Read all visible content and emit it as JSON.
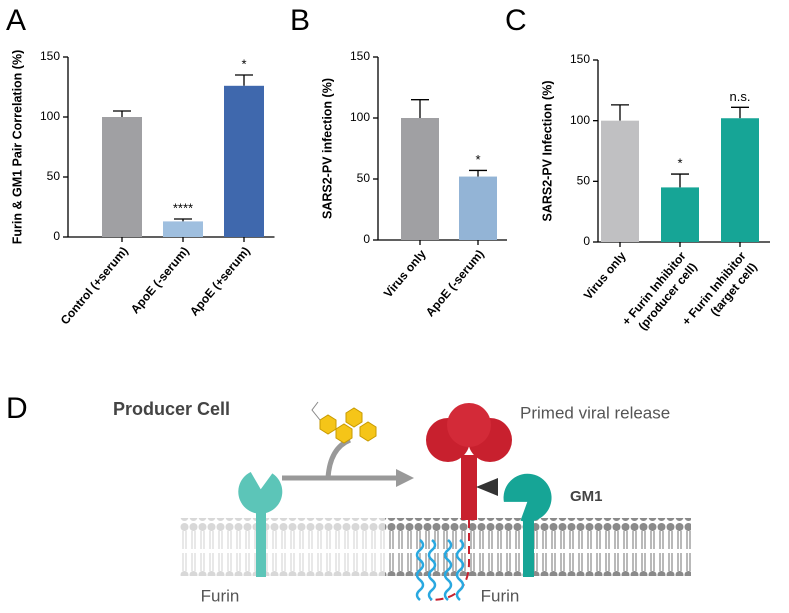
{
  "chart_data": [
    {
      "type": "bar",
      "panel": "A",
      "y_label": "Furin & GM1 Pair Correlation (%)",
      "categories": [
        [
          "Control (+serum)"
        ],
        [
          "ApoE (-serum)"
        ],
        [
          "ApoE (+serum)"
        ]
      ],
      "values": [
        100,
        13,
        126
      ],
      "errors": [
        5,
        2,
        9
      ],
      "colors": [
        "#a0a0a3",
        "#9fbfdf",
        "#3f68ad"
      ],
      "annotations": [
        null,
        "****",
        "*"
      ],
      "ylim": [
        0,
        150
      ],
      "yticks": [
        0,
        50,
        100,
        150
      ]
    },
    {
      "type": "bar",
      "panel": "B",
      "y_label": "SARS2-PV infection (%)",
      "categories": [
        [
          "Virus only"
        ],
        [
          "ApoE (-serum)"
        ]
      ],
      "values": [
        100,
        52
      ],
      "errors": [
        15,
        5
      ],
      "colors": [
        "#a0a0a3",
        "#93b4d6"
      ],
      "annotations": [
        null,
        "*"
      ],
      "ylim": [
        0,
        150
      ],
      "yticks": [
        0,
        50,
        100,
        150
      ]
    },
    {
      "type": "bar",
      "panel": "C",
      "y_label": "SARS2-PV Infection (%)",
      "categories": [
        [
          "Virus only"
        ],
        [
          "+ Furin Inhibitor",
          "(producer cell)"
        ],
        [
          "+ Furin Inhibitor",
          "(target cell)"
        ]
      ],
      "values": [
        100,
        45,
        102
      ],
      "errors": [
        13,
        11,
        9
      ],
      "colors": [
        "#c0c0c2",
        "#16a596",
        "#16a596"
      ],
      "annotations": [
        null,
        "*",
        "n.s."
      ],
      "ylim": [
        0,
        150
      ],
      "yticks": [
        0,
        50,
        100,
        150
      ]
    }
  ],
  "diagram": {
    "panel": "D",
    "title": "Producer Cell",
    "release": "Primed viral release",
    "gm1": "GM1",
    "furin_left": "Furin",
    "furin_right": "Furin"
  }
}
